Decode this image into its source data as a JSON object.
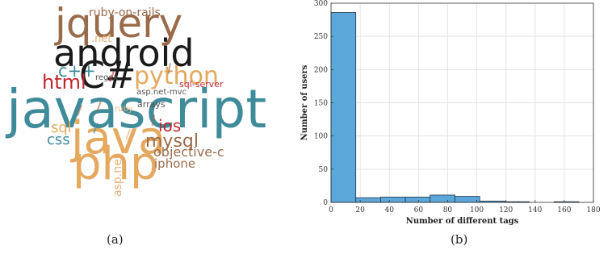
{
  "panel_a": {
    "caption": "(a)",
    "words": [
      {
        "text": "ruby-on-rails",
        "color": "#9a6b4b"
      },
      {
        "text": "jquery",
        "color": "#9a6b4b"
      },
      {
        "text": ".net",
        "color": "#e9b07a"
      },
      {
        "text": "android",
        "color": "#1a1a1a"
      },
      {
        "text": "c++",
        "color": "#3f8b9a"
      },
      {
        "text": "C#",
        "color": "#1a1a1a"
      },
      {
        "text": "python",
        "color": "#e4a85e"
      },
      {
        "text": "html",
        "color": "#c0272d"
      },
      {
        "text": "regex",
        "color": "#555555"
      },
      {
        "text": "sql-server",
        "color": "#c0272d"
      },
      {
        "text": "asp.net-mvc",
        "color": "#555555"
      },
      {
        "text": "javascript",
        "color": "#3f8b9a"
      },
      {
        "text": "arrays",
        "color": "#555555"
      },
      {
        "text": "ruby",
        "color": "#e9b07a"
      },
      {
        "text": "sql",
        "color": "#e4a85e"
      },
      {
        "text": "ios",
        "color": "#c0272d"
      },
      {
        "text": "css",
        "color": "#3f8b9a"
      },
      {
        "text": "java",
        "color": "#e4a85e"
      },
      {
        "text": "mysql",
        "color": "#9a6b4b"
      },
      {
        "text": "objective-c",
        "color": "#9a6b4b"
      },
      {
        "text": "php",
        "color": "#e4a85e"
      },
      {
        "text": "asp.net",
        "color": "#e9b07a"
      },
      {
        "text": "iphone",
        "color": "#9a6b4b"
      }
    ]
  },
  "panel_b": {
    "caption": "(b)",
    "bar_color": "#5ca7d9"
  },
  "chart_data": {
    "type": "bar",
    "title": "",
    "xlabel": "Number of different tags",
    "ylabel": "Number of users",
    "xlim": [
      0,
      180
    ],
    "ylim": [
      0,
      300
    ],
    "xticks": [
      0,
      20,
      40,
      60,
      80,
      100,
      120,
      140,
      160,
      180
    ],
    "yticks": [
      0,
      50,
      100,
      150,
      200,
      250,
      300
    ],
    "grid": true,
    "bins": [
      {
        "x0": 0,
        "x1": 17,
        "value": 286
      },
      {
        "x0": 17,
        "x1": 34,
        "value": 7
      },
      {
        "x0": 34,
        "x1": 51,
        "value": 8
      },
      {
        "x0": 51,
        "x1": 68,
        "value": 8
      },
      {
        "x0": 68,
        "x1": 85,
        "value": 11
      },
      {
        "x0": 85,
        "x1": 102,
        "value": 9
      },
      {
        "x0": 102,
        "x1": 119,
        "value": 2
      },
      {
        "x0": 119,
        "x1": 136,
        "value": 1
      },
      {
        "x0": 136,
        "x1": 153,
        "value": 0
      },
      {
        "x0": 153,
        "x1": 170,
        "value": 1
      }
    ]
  }
}
